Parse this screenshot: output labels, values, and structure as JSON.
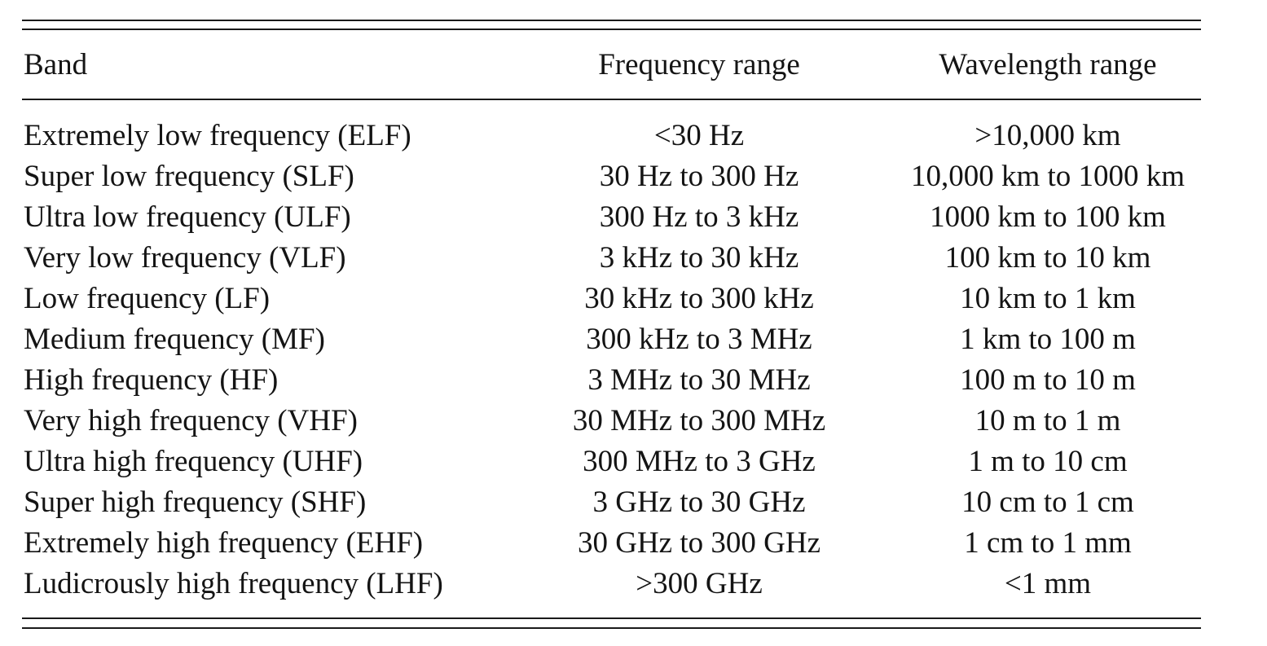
{
  "table": {
    "headers": {
      "band": "Band",
      "frequency": "Frequency range",
      "wavelength": "Wavelength range"
    },
    "rows": [
      {
        "band": "Extremely low frequency (ELF)",
        "frequency": "<30 Hz",
        "wavelength": ">10,000 km"
      },
      {
        "band": "Super low frequency (SLF)",
        "frequency": "30 Hz to 300 Hz",
        "wavelength": "10,000 km to 1000 km"
      },
      {
        "band": "Ultra low frequency (ULF)",
        "frequency": "300 Hz to 3 kHz",
        "wavelength": "1000 km to 100 km"
      },
      {
        "band": "Very low frequency (VLF)",
        "frequency": "3 kHz to 30 kHz",
        "wavelength": "100 km to 10 km"
      },
      {
        "band": "Low frequency (LF)",
        "frequency": "30 kHz to 300 kHz",
        "wavelength": "10 km to 1 km"
      },
      {
        "band": "Medium frequency (MF)",
        "frequency": "300 kHz to 3 MHz",
        "wavelength": "1 km to 100 m"
      },
      {
        "band": "High frequency (HF)",
        "frequency": "3 MHz to 30 MHz",
        "wavelength": "100 m to 10 m"
      },
      {
        "band": "Very high frequency (VHF)",
        "frequency": "30 MHz to 300 MHz",
        "wavelength": "10 m to 1 m"
      },
      {
        "band": "Ultra high frequency (UHF)",
        "frequency": "300 MHz to 3 GHz",
        "wavelength": "1 m to 10 cm"
      },
      {
        "band": "Super high frequency (SHF)",
        "frequency": "3 GHz to 30 GHz",
        "wavelength": "10 cm to 1 cm"
      },
      {
        "band": "Extremely high frequency (EHF)",
        "frequency": "30 GHz to 300 GHz",
        "wavelength": "1 cm to 1 mm"
      },
      {
        "band": "Ludicrously high frequency (LHF)",
        "frequency": ">300 GHz",
        "wavelength": "<1 mm"
      }
    ]
  }
}
